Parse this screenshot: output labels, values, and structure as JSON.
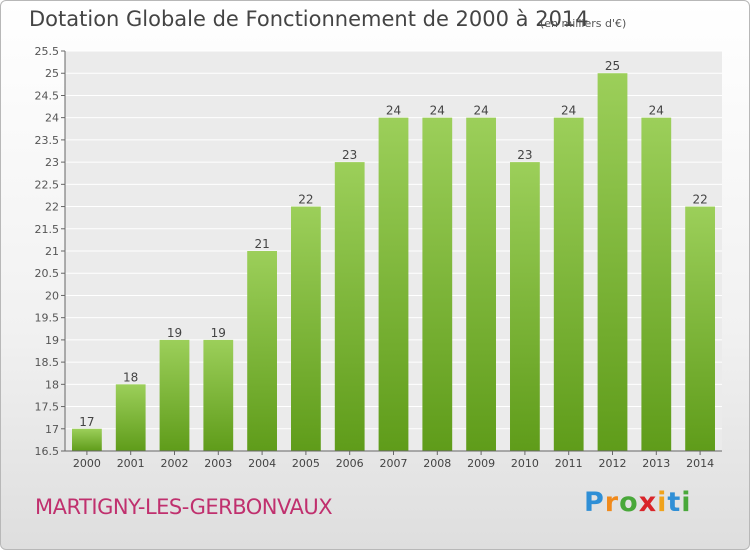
{
  "page": {
    "title": "Dotation Globale de Fonctionnement de 2000 à 2014",
    "subtitle": "(en milliers d'€)",
    "commune": "MARTIGNY-LES-GERBONVAUX",
    "brand": {
      "letters": [
        "P",
        "r",
        "o",
        "x",
        "i",
        "t",
        "i"
      ],
      "colors": [
        "#2f8fd6",
        "#f08a1c",
        "#49a83a",
        "#d9252a",
        "#f0a31c",
        "#2f8fd6",
        "#49a83a"
      ]
    }
  },
  "chart_data": {
    "type": "bar",
    "title": "Dotation Globale de Fonctionnement de 2000 à 2014",
    "subtitle": "(en milliers d'€)",
    "categories": [
      "2000",
      "2001",
      "2002",
      "2003",
      "2004",
      "2005",
      "2006",
      "2007",
      "2008",
      "2009",
      "2010",
      "2011",
      "2012",
      "2013",
      "2014"
    ],
    "values": [
      17,
      18,
      19,
      19,
      21,
      22,
      23,
      24,
      24,
      24,
      23,
      24,
      25,
      24,
      22
    ],
    "data_labels": [
      "17",
      "18",
      "19",
      "19",
      "21",
      "22",
      "23",
      "24",
      "24",
      "24",
      "23",
      "24",
      "25",
      "24",
      "22"
    ],
    "yticks": [
      "16.5",
      "17",
      "17.5",
      "18",
      "18.5",
      "19",
      "19.5",
      "20",
      "20.5",
      "21",
      "21.5",
      "22",
      "22.5",
      "23",
      "23.5",
      "24",
      "24.5",
      "25",
      "25.5"
    ],
    "ylim": [
      16.5,
      25.5
    ],
    "xlabel": "",
    "ylabel": "",
    "grid": true,
    "bar_color_top": "#9ccf5a",
    "bar_color_bottom": "#5f9c1a"
  }
}
